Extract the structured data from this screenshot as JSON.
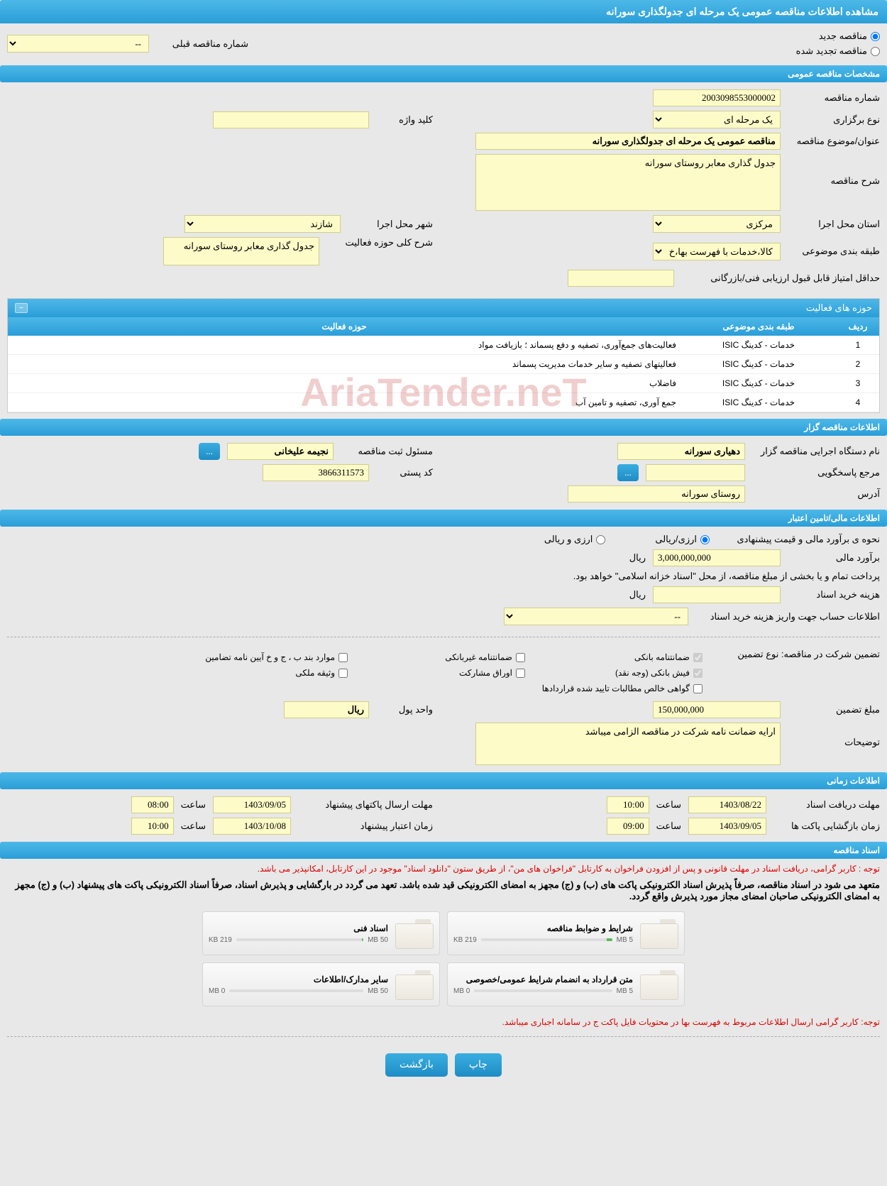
{
  "header": {
    "title": "مشاهده اطلاعات مناقصه عمومی یک مرحله ای جدولگذاری سورانه"
  },
  "top": {
    "radio_new": "مناقصه جدید",
    "radio_renewed": "مناقصه تجدید شده",
    "prev_tender_label": "شماره مناقصه قبلی",
    "prev_tender_value": "--"
  },
  "sections": {
    "general": "مشخصات مناقصه عمومی",
    "organizer": "اطلاعات مناقصه گزار",
    "financial": "اطلاعات مالی/تامین اعتبار",
    "timing": "اطلاعات زمانی",
    "documents": "اسناد مناقصه"
  },
  "general": {
    "tender_no_label": "شماره مناقصه",
    "tender_no": "2003098553000002",
    "type_label": "نوع برگزاری",
    "type": "یک مرحله ای",
    "keyword_label": "کلید واژه",
    "keyword": "",
    "title_label": "عنوان/موضوع مناقصه",
    "title": "مناقصه عمومی یک مرحله ای جدولگذاری سورانه",
    "desc_label": "شرح مناقصه",
    "desc": "جدول گذاری معابر روستای سورانه",
    "province_label": "استان محل اجرا",
    "province": "مرکزی",
    "city_label": "شهر محل اجرا",
    "city": "شازند",
    "category_label": "طبقه بندی موضوعی",
    "category": "کالا،خدمات با فهرست بها،خ",
    "scope_label": "شرح کلی حوزه فعالیت",
    "scope": "جدول گذاری معابر روستای سورانه",
    "min_score_label": "حداقل امتیاز قابل قبول ارزیابی فنی/بازرگانی",
    "min_score": ""
  },
  "activities": {
    "title": "حوزه های فعالیت",
    "col_row": "ردیف",
    "col_category": "طبقه بندی موضوعی",
    "col_scope": "حوزه فعالیت",
    "rows": [
      {
        "n": "1",
        "cat": "خدمات - کدینگ ISIC",
        "scope": "فعالیت‌های جمع‌آوری، تصفیه و دفع پسماند ؛ بازیافت مواد"
      },
      {
        "n": "2",
        "cat": "خدمات - کدینگ ISIC",
        "scope": "فعالیتهای تصفیه و سایر خدمات مدیریت پسماند"
      },
      {
        "n": "3",
        "cat": "خدمات - کدینگ ISIC",
        "scope": "فاضلاب"
      },
      {
        "n": "4",
        "cat": "خدمات - کدینگ ISIC",
        "scope": "جمع آوری، تصفیه و تامین آب"
      }
    ]
  },
  "organizer": {
    "org_label": "نام دستگاه اجرایی مناقصه گزار",
    "org": "دهیاری سورانه",
    "responsible_label": "مسئول ثبت مناقصه",
    "responsible": "نجیمه علیخانی",
    "contact_label": "مرجع پاسخگویی",
    "contact": "",
    "postal_label": "کد پستی",
    "postal": "3866311573",
    "address_label": "آدرس",
    "address": "روستای سورانه",
    "more_btn": "..."
  },
  "financial": {
    "estimate_method_label": "نحوه ی برآورد مالی و قیمت پیشنهادی",
    "opt_rial": "ارزی/ریالی",
    "opt_both": "ارزی و ریالی",
    "estimate_label": "برآورد مالی",
    "estimate": "3,000,000,000",
    "currency": "ریال",
    "treasury_note": "پرداخت تمام و یا بخشی از مبلغ مناقصه، از محل \"اسناد خزانه اسلامی\" خواهد بود.",
    "doc_fee_label": "هزینه خرید اسناد",
    "doc_fee": "",
    "account_label": "اطلاعات حساب جهت واریز هزینه خرید اسناد",
    "account": "--",
    "guarantee_label": "تضمین شرکت در مناقصه:   نوع تضمین",
    "chk_bank": "ضمانتنامه بانکی",
    "chk_nonbank": "ضمانتنامه غیربانکی",
    "chk_bond": "موارد بند ب ، ج و خ آیین نامه تضامین",
    "chk_cash": "فیش بانکی (وجه نقد)",
    "chk_securities": "اوراق مشارکت",
    "chk_property": "وثیقه ملکی",
    "chk_receivables": "گواهی خالص مطالبات تایید شده قراردادها",
    "guarantee_amount_label": "مبلغ تضمین",
    "guarantee_amount": "150,000,000",
    "unit_label": "واحد پول",
    "unit": "ریال",
    "notes_label": "توضیحات",
    "notes": "ارایه ضمانت نامه شرکت در مناقصه الزامی میباشد"
  },
  "timing": {
    "receive_label": "مهلت دریافت اسناد",
    "receive_date": "1403/08/22",
    "receive_time_label": "ساعت",
    "receive_time": "10:00",
    "submit_label": "مهلت ارسال پاکتهای پیشنهاد",
    "submit_date": "1403/09/05",
    "submit_time": "08:00",
    "open_label": "زمان بازگشایی پاکت ها",
    "open_date": "1403/09/05",
    "open_time": "09:00",
    "validity_label": "زمان اعتبار پیشنهاد",
    "validity_date": "1403/10/08",
    "validity_time": "10:00"
  },
  "documents": {
    "note1": "توجه : کاربر گرامی، دریافت اسناد در مهلت قانونی و پس از افزودن فراخوان به کارتابل \"فراخوان های من\"، از طریق ستون \"دانلود اسناد\" موجود در این کارتابل، امکانپذیر می باشد.",
    "note2": "متعهد می شود در اسناد مناقصه، صرفاً پذیرش اسناد الکترونیکی پاکت های (ب) و (ج) مجهز به امضای الکترونیکی قید شده باشد. تعهد می گردد در بارگشایی و پذیرش اسناد، صرفاً اسناد الکترونیکی پاکت های پیشنهاد (ب) و (ج) مجهز به امضای الکترونیکی صاحبان امضای مجاز مورد پذیرش واقع گردد.",
    "files": [
      {
        "title": "شرایط و ضوابط مناقصه",
        "used": "219 KB",
        "max": "5 MB",
        "progress": 4
      },
      {
        "title": "اسناد فنی",
        "used": "219 KB",
        "max": "50 MB",
        "progress": 1
      },
      {
        "title": "متن قرارداد به انضمام شرایط عمومی/خصوصی",
        "used": "0 MB",
        "max": "5 MB",
        "progress": 0
      },
      {
        "title": "سایر مدارک/اطلاعات",
        "used": "0 MB",
        "max": "50 MB",
        "progress": 0
      }
    ],
    "note3": "توجه: کاربر گرامی ارسال اطلاعات مربوط به فهرست بها در محتویات فایل پاکت ج در سامانه اجباری میباشد."
  },
  "buttons": {
    "print": "چاپ",
    "back": "بازگشت"
  },
  "watermark": "AriaTender.neT"
}
